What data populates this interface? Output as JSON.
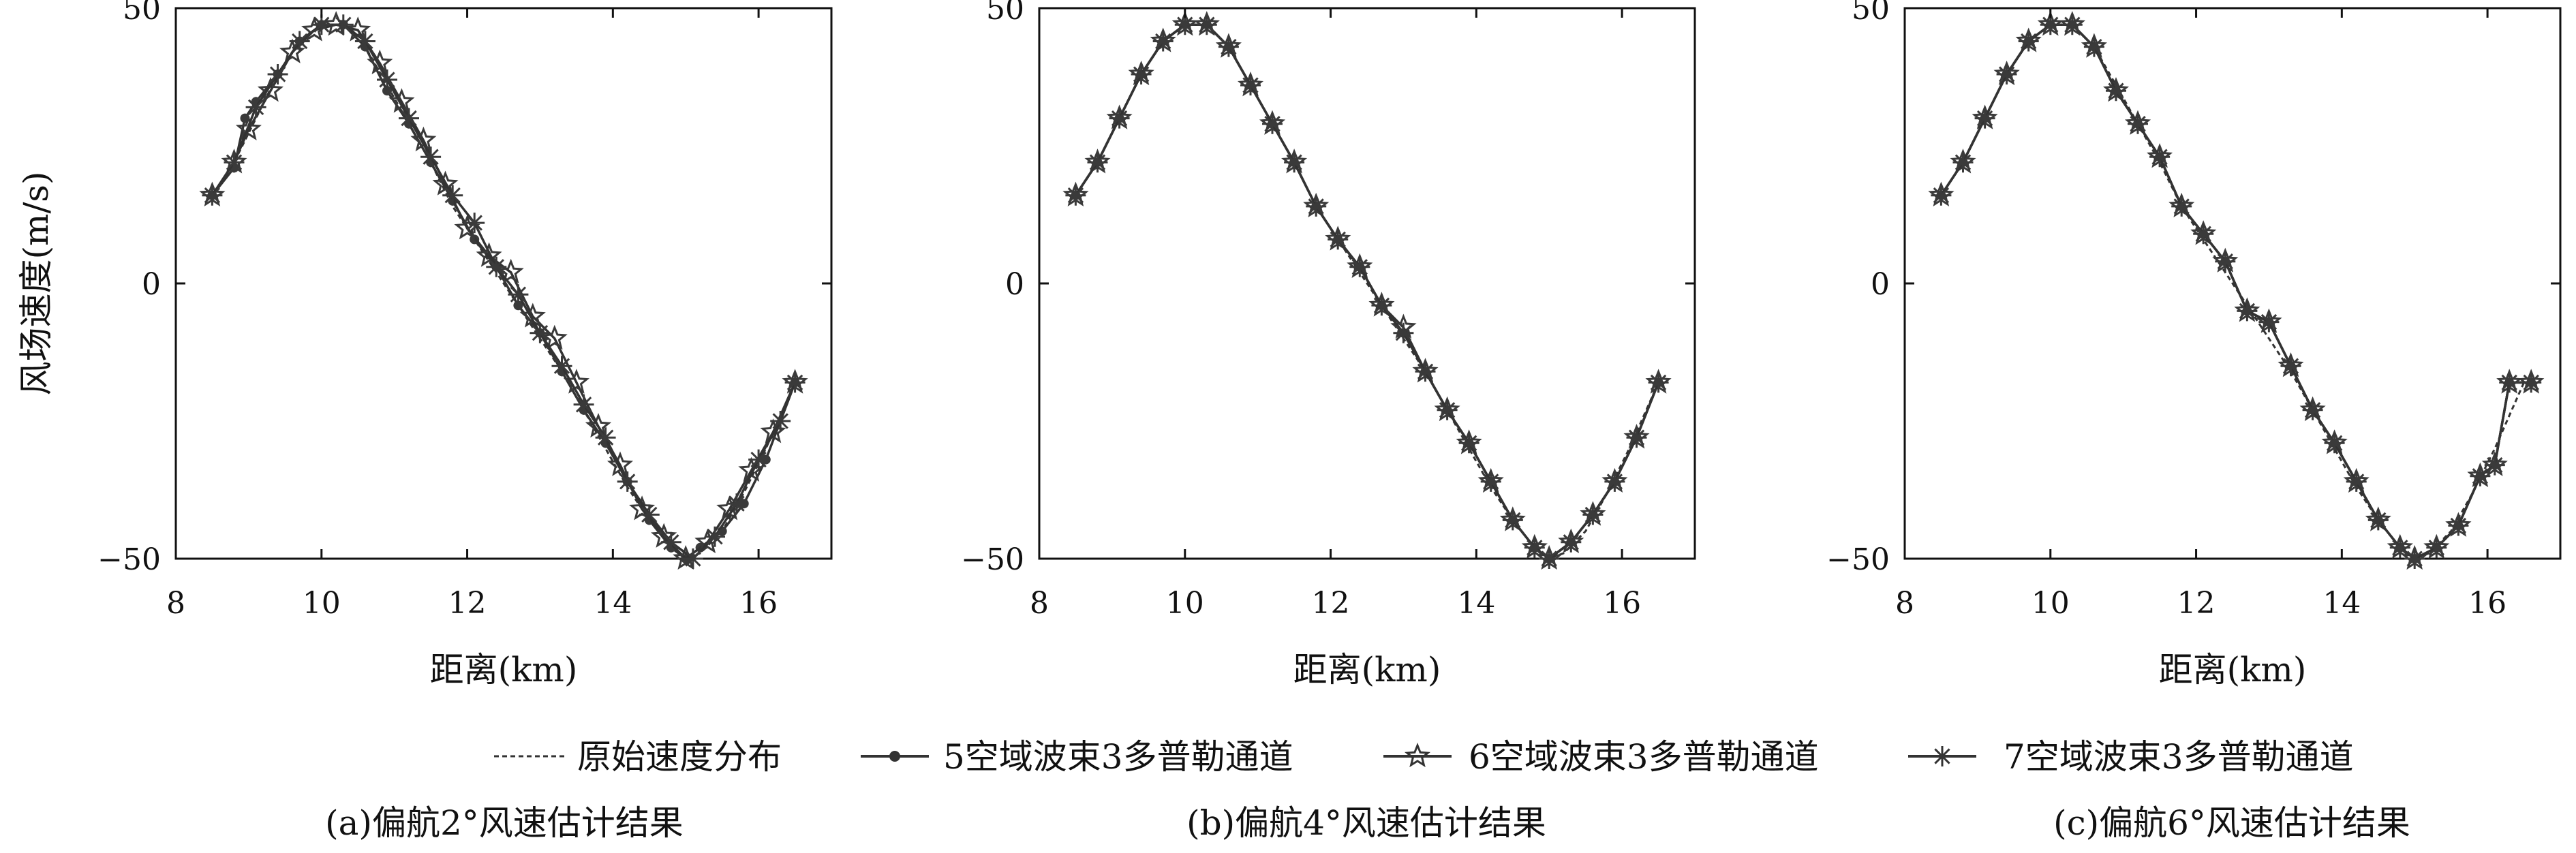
{
  "chart_data": [
    {
      "type": "line",
      "caption": "(a)偏航2°风速估计结果",
      "xlabel": "距离(km)",
      "ylabel": "风场速度(m/s)",
      "xlim": [
        8,
        17
      ],
      "ylim": [
        -50,
        50
      ],
      "xticks": [
        8,
        10,
        12,
        14,
        16
      ],
      "yticks": [
        -50,
        0,
        50
      ],
      "series": [
        {
          "name": "原始速度分布",
          "x": [
            8.5,
            8.8,
            9.1,
            9.4,
            9.7,
            10.0,
            10.3,
            10.6,
            10.9,
            11.2,
            11.5,
            11.8,
            12.1,
            12.4,
            12.7,
            13.0,
            13.3,
            13.6,
            13.9,
            14.2,
            14.5,
            14.8,
            15.0,
            15.2,
            15.5,
            15.8,
            16.1,
            16.5
          ],
          "y": [
            16,
            22,
            30,
            38,
            44,
            47,
            47,
            43,
            36,
            29,
            22,
            14,
            8,
            2,
            -4,
            -10,
            -16,
            -23,
            -30,
            -37,
            -43,
            -48,
            -50,
            -49,
            -45,
            -38,
            -30,
            -18
          ]
        },
        {
          "name": "5空域波束3多普勒通道",
          "x": [
            8.5,
            8.8,
            8.95,
            9.1,
            9.4,
            9.7,
            10.0,
            10.3,
            10.6,
            10.9,
            11.2,
            11.5,
            11.8,
            12.1,
            12.4,
            12.7,
            13.0,
            13.3,
            13.6,
            13.9,
            14.2,
            14.5,
            14.8,
            15.0,
            15.2,
            15.5,
            15.8,
            16.1,
            16.5
          ],
          "y": [
            16,
            21,
            30,
            33,
            38,
            44,
            47,
            47,
            43,
            35,
            29,
            22,
            15,
            8,
            3,
            -4,
            -9,
            -16,
            -23,
            -29,
            -36,
            -43,
            -48,
            -50,
            -48,
            -45,
            -40,
            -32,
            -18
          ]
        },
        {
          "name": "6空域波束3多普勒通道",
          "x": [
            8.5,
            8.8,
            9.0,
            9.3,
            9.6,
            9.9,
            10.2,
            10.5,
            10.8,
            11.1,
            11.4,
            11.7,
            12.0,
            12.3,
            12.6,
            12.9,
            13.2,
            13.5,
            13.8,
            14.1,
            14.4,
            14.7,
            15.0,
            15.3,
            15.6,
            15.9,
            16.2,
            16.5
          ],
          "y": [
            16,
            22,
            28,
            35,
            42,
            46,
            47,
            46,
            40,
            33,
            26,
            18,
            10,
            5,
            2,
            -6,
            -10,
            -18,
            -26,
            -33,
            -41,
            -46,
            -50,
            -47,
            -41,
            -34,
            -27,
            -18
          ]
        },
        {
          "name": "7空域波束3多普勒通道",
          "x": [
            8.5,
            8.8,
            9.1,
            9.4,
            9.7,
            10.0,
            10.3,
            10.6,
            10.9,
            11.2,
            11.5,
            11.8,
            12.1,
            12.4,
            12.7,
            13.0,
            13.3,
            13.6,
            13.9,
            14.2,
            14.5,
            14.8,
            15.1,
            15.4,
            15.7,
            16.0,
            16.3,
            16.5
          ],
          "y": [
            16,
            22,
            32,
            38,
            44,
            47,
            47,
            44,
            37,
            30,
            23,
            16,
            11,
            3,
            -2,
            -9,
            -15,
            -22,
            -28,
            -36,
            -42,
            -47,
            -50,
            -46,
            -40,
            -32,
            -25,
            -18
          ]
        }
      ]
    },
    {
      "type": "line",
      "caption": "(b)偏航4°风速估计结果",
      "xlabel": "距离(km)",
      "ylabel": "",
      "xlim": [
        8,
        17
      ],
      "ylim": [
        -50,
        50
      ],
      "xticks": [
        8,
        10,
        12,
        14,
        16
      ],
      "yticks": [
        -50,
        0,
        50
      ],
      "series": [
        {
          "name": "原始速度分布",
          "x": [
            8.5,
            8.8,
            9.1,
            9.4,
            9.7,
            10.0,
            10.3,
            10.6,
            10.9,
            11.2,
            11.5,
            11.8,
            12.1,
            12.4,
            12.7,
            13.0,
            13.3,
            13.6,
            13.9,
            14.2,
            14.5,
            14.8,
            15.0,
            15.2,
            15.5,
            15.8,
            16.1,
            16.5
          ],
          "y": [
            16,
            22,
            30,
            38,
            44,
            47,
            47,
            43,
            36,
            29,
            22,
            14,
            8,
            2,
            -4,
            -10,
            -16,
            -23,
            -30,
            -37,
            -43,
            -48,
            -50,
            -49,
            -45,
            -38,
            -30,
            -18
          ]
        },
        {
          "name": "5空域波束3多普勒通道",
          "x": [
            8.5,
            8.8,
            9.1,
            9.4,
            9.7,
            10.0,
            10.3,
            10.6,
            10.9,
            11.2,
            11.5,
            11.8,
            12.1,
            12.4,
            12.7,
            13.0,
            13.3,
            13.6,
            13.9,
            14.2,
            14.5,
            14.8,
            15.0,
            15.3,
            15.6,
            15.9,
            16.2,
            16.5
          ],
          "y": [
            16,
            22,
            30,
            38,
            44,
            47,
            47,
            43,
            36,
            29,
            22,
            14,
            8,
            3,
            -4,
            -9,
            -16,
            -23,
            -29,
            -36,
            -43,
            -48,
            -50,
            -47,
            -42,
            -36,
            -28,
            -18
          ]
        },
        {
          "name": "6空域波束3多普勒通道",
          "x": [
            8.5,
            8.8,
            9.1,
            9.4,
            9.7,
            10.0,
            10.3,
            10.6,
            10.9,
            11.2,
            11.5,
            11.8,
            12.1,
            12.4,
            12.7,
            13.0,
            13.3,
            13.6,
            13.9,
            14.2,
            14.5,
            14.8,
            15.0,
            15.3,
            15.6,
            15.9,
            16.2,
            16.5
          ],
          "y": [
            16,
            22,
            30,
            38,
            44,
            47,
            47,
            43,
            36,
            29,
            22,
            14,
            8,
            3,
            -4,
            -8,
            -16,
            -23,
            -29,
            -36,
            -43,
            -48,
            -50,
            -47,
            -42,
            -36,
            -28,
            -18
          ]
        },
        {
          "name": "7空域波束3多普勒通道",
          "x": [
            8.5,
            8.8,
            9.1,
            9.4,
            9.7,
            10.0,
            10.3,
            10.6,
            10.9,
            11.2,
            11.5,
            11.8,
            12.1,
            12.4,
            12.7,
            13.0,
            13.3,
            13.6,
            13.9,
            14.2,
            14.5,
            14.8,
            15.0,
            15.3,
            15.6,
            15.9,
            16.2,
            16.5
          ],
          "y": [
            16,
            22,
            30,
            38,
            44,
            47,
            47,
            43,
            36,
            29,
            22,
            14,
            8,
            3,
            -4,
            -9,
            -16,
            -23,
            -29,
            -36,
            -43,
            -48,
            -50,
            -47,
            -42,
            -36,
            -28,
            -18
          ]
        }
      ]
    },
    {
      "type": "line",
      "caption": "(c)偏航6°风速估计结果",
      "xlabel": "距离(km)",
      "ylabel": "",
      "xlim": [
        8,
        17
      ],
      "ylim": [
        -50,
        50
      ],
      "xticks": [
        8,
        10,
        12,
        14,
        16
      ],
      "yticks": [
        -50,
        0,
        50
      ],
      "series": [
        {
          "name": "原始速度分布",
          "x": [
            8.5,
            8.8,
            9.1,
            9.4,
            9.7,
            10.0,
            10.3,
            10.6,
            10.9,
            11.2,
            11.5,
            11.8,
            12.1,
            12.4,
            12.7,
            13.0,
            13.3,
            13.6,
            13.9,
            14.2,
            14.5,
            14.8,
            15.0,
            15.2,
            15.5,
            15.8,
            16.1,
            16.5
          ],
          "y": [
            16,
            22,
            30,
            38,
            44,
            47,
            47,
            43,
            36,
            29,
            22,
            14,
            8,
            2,
            -4,
            -10,
            -16,
            -23,
            -30,
            -37,
            -43,
            -48,
            -50,
            -49,
            -45,
            -38,
            -30,
            -18
          ]
        },
        {
          "name": "5空域波束3多普勒通道",
          "x": [
            8.5,
            8.8,
            9.1,
            9.4,
            9.7,
            10.0,
            10.3,
            10.6,
            10.9,
            11.2,
            11.5,
            11.8,
            12.1,
            12.4,
            12.7,
            13.0,
            13.3,
            13.6,
            13.9,
            14.2,
            14.5,
            14.8,
            15.0,
            15.3,
            15.6,
            15.9,
            16.1,
            16.3,
            16.6
          ],
          "y": [
            16,
            22,
            30,
            38,
            44,
            47,
            47,
            43,
            35,
            29,
            23,
            14,
            9,
            4,
            -5,
            -7,
            -15,
            -23,
            -29,
            -36,
            -43,
            -48,
            -50,
            -48,
            -44,
            -35,
            -33,
            -18,
            -18
          ]
        },
        {
          "name": "6空域波束3多普勒通道",
          "x": [
            8.5,
            8.8,
            9.1,
            9.4,
            9.7,
            10.0,
            10.3,
            10.6,
            10.9,
            11.2,
            11.5,
            11.8,
            12.1,
            12.4,
            12.7,
            13.0,
            13.3,
            13.6,
            13.9,
            14.2,
            14.5,
            14.8,
            15.0,
            15.3,
            15.6,
            15.9,
            16.1,
            16.3,
            16.6
          ],
          "y": [
            16,
            22,
            30,
            38,
            44,
            47,
            47,
            43,
            35,
            29,
            23,
            14,
            9,
            4,
            -5,
            -7,
            -15,
            -23,
            -29,
            -36,
            -43,
            -48,
            -50,
            -48,
            -44,
            -35,
            -33,
            -18,
            -18
          ]
        },
        {
          "name": "7空域波束3多普勒通道",
          "x": [
            8.5,
            8.8,
            9.1,
            9.4,
            9.7,
            10.0,
            10.3,
            10.6,
            10.9,
            11.2,
            11.5,
            11.8,
            12.1,
            12.4,
            12.7,
            13.0,
            13.3,
            13.6,
            13.9,
            14.2,
            14.5,
            14.8,
            15.0,
            15.3,
            15.6,
            15.9,
            16.1,
            16.3,
            16.6
          ],
          "y": [
            16,
            22,
            30,
            38,
            44,
            47,
            47,
            43,
            35,
            29,
            23,
            14,
            9,
            4,
            -5,
            -7,
            -15,
            -23,
            -29,
            -36,
            -43,
            -48,
            -50,
            -48,
            -44,
            -35,
            -33,
            -18,
            -18
          ]
        }
      ]
    }
  ],
  "legend": {
    "placement": "bottom",
    "items": [
      {
        "label": "原始速度分布",
        "style": "dashed"
      },
      {
        "label": "5空域波束3多普勒通道",
        "style": "dot"
      },
      {
        "label": "6空域波束3多普勒通道",
        "style": "star"
      },
      {
        "label": "7空域波束3多普勒通道",
        "style": "asterisk"
      }
    ]
  },
  "colors": {
    "line": "#333333",
    "marker": "#3a3a3a",
    "axis": "#111111"
  }
}
